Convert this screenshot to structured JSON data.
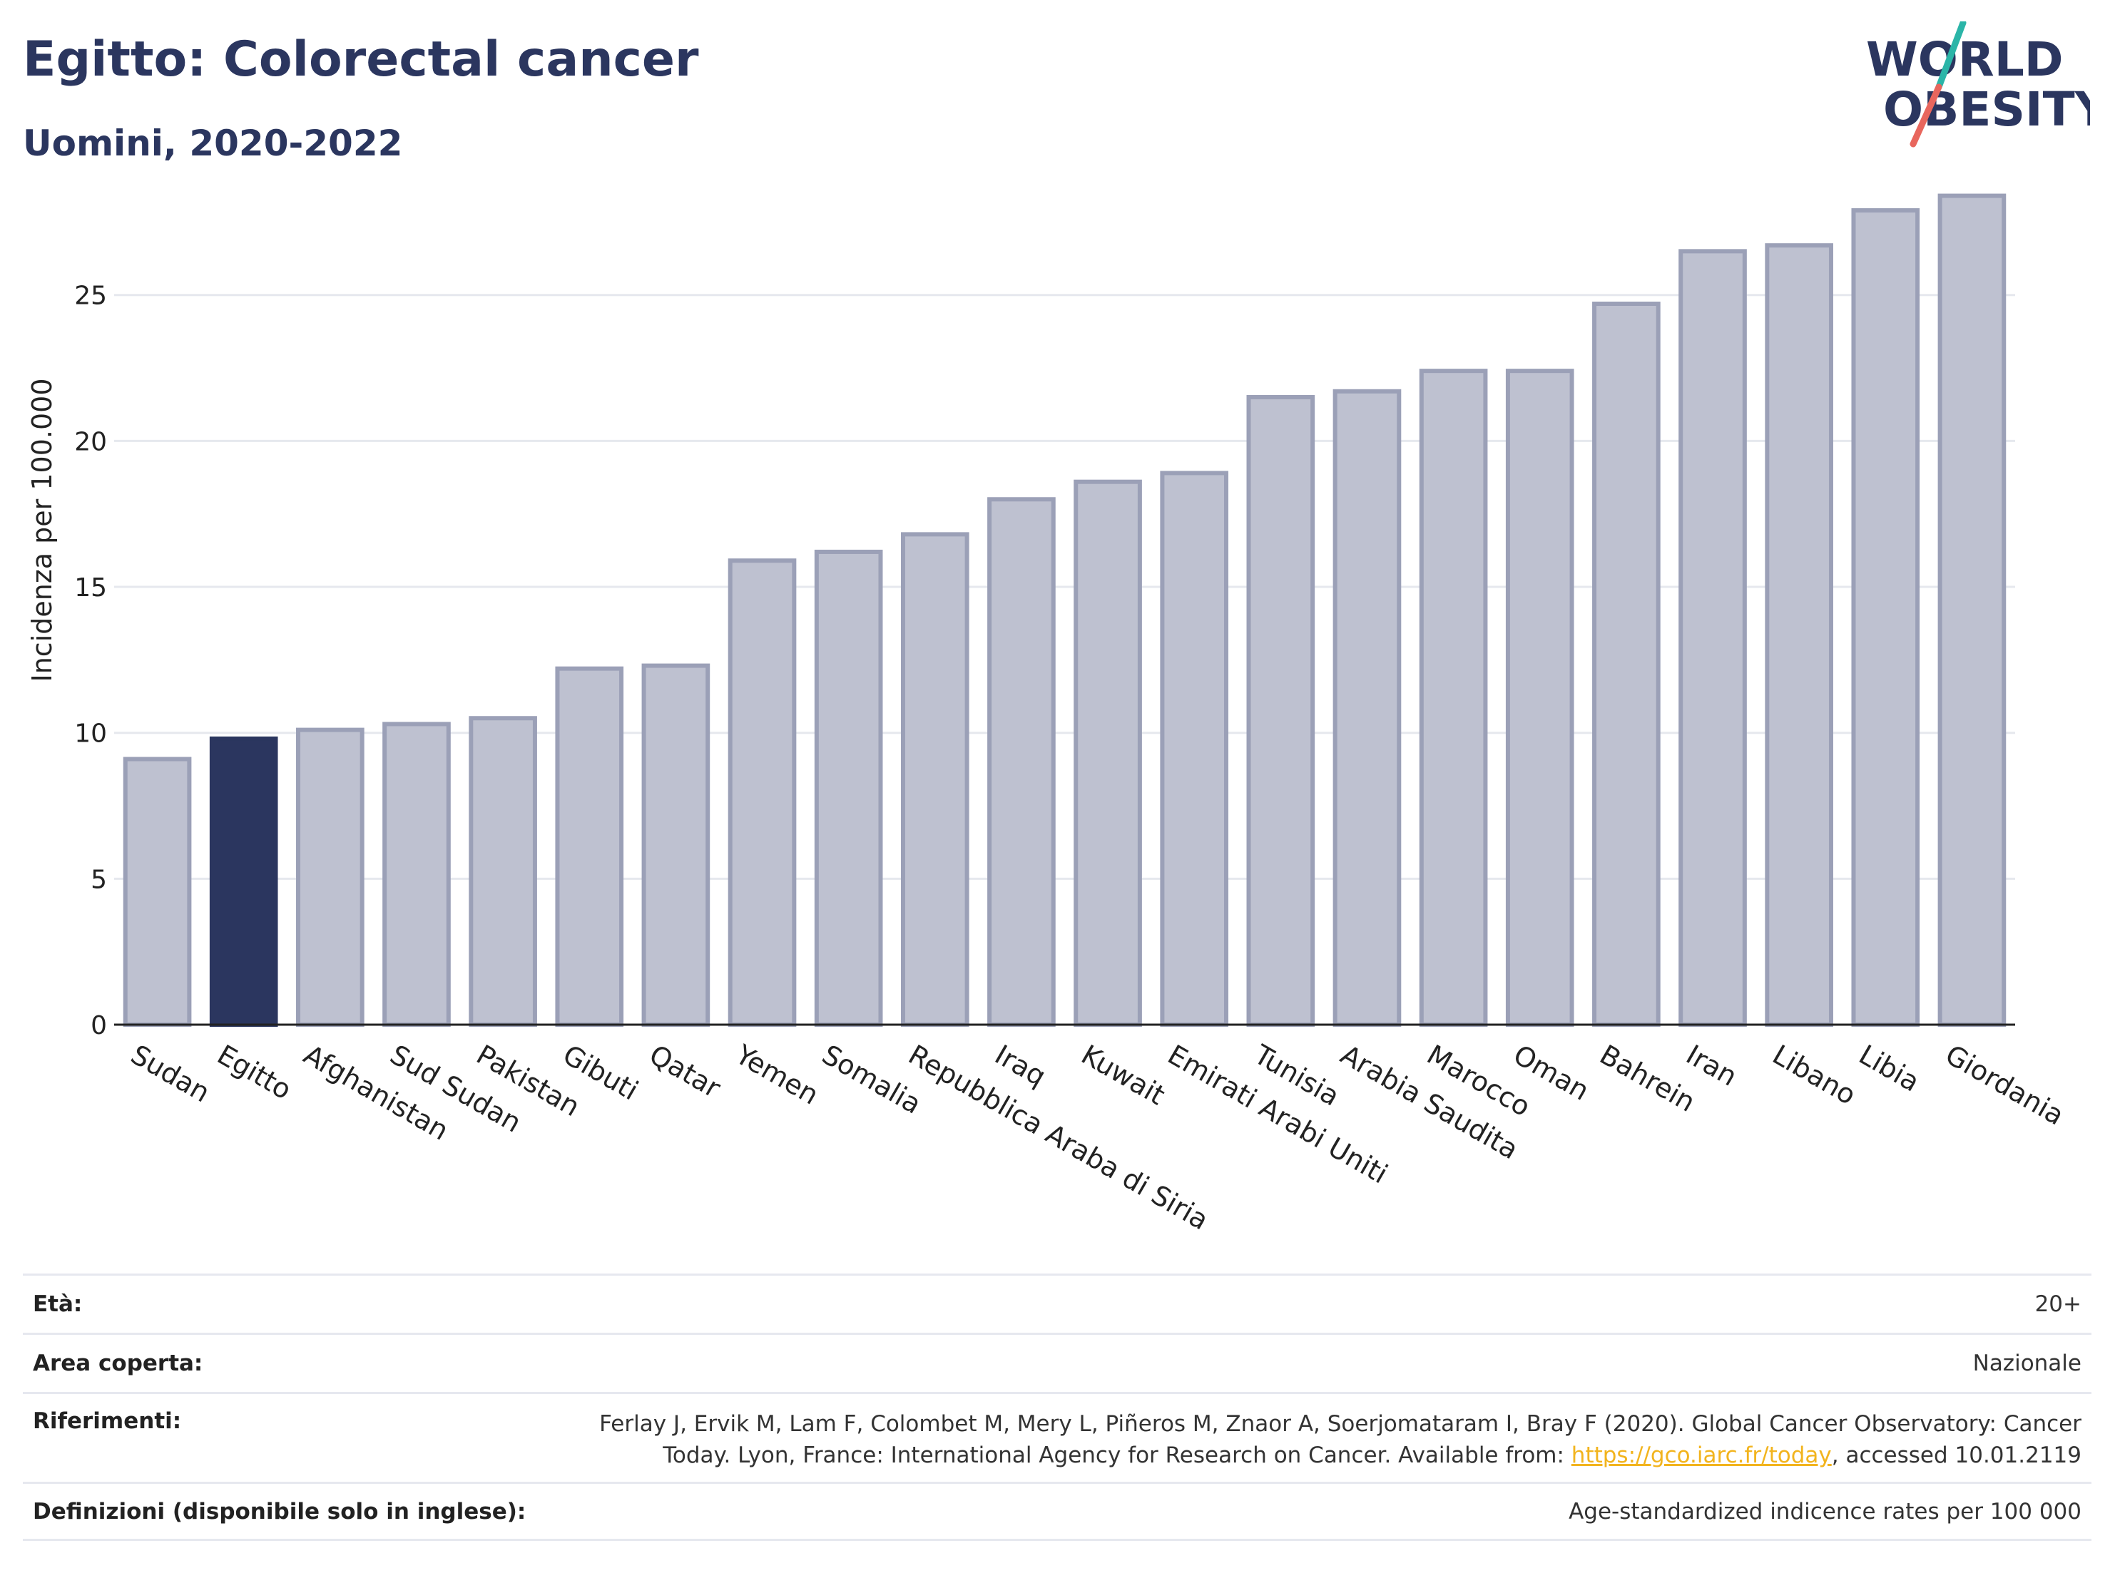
{
  "header": {
    "title": "Egitto: Colorectal cancer",
    "subtitle": "Uomini, 2020-2022"
  },
  "logo": {
    "line1": "WORLD",
    "line2": "OBESITY",
    "accent_teal": "#2bb5a8",
    "accent_red": "#e8665d"
  },
  "colors": {
    "highlight": "#2b365f",
    "bar": "#bec1d0",
    "bar_outline": "#9ba0b7"
  },
  "chart_data": {
    "type": "bar",
    "ylabel": "Incidenza per 100.000",
    "ylim": [
      0,
      29
    ],
    "yticks": [
      0,
      5,
      10,
      15,
      20,
      25
    ],
    "grid": true,
    "highlight": "Egitto",
    "categories": [
      "Sudan",
      "Egitto",
      "Afghanistan",
      "Sud Sudan",
      "Pakistan",
      "Gibuti",
      "Qatar",
      "Yemen",
      "Somalia",
      "Repubblica Araba di Siria",
      "Iraq",
      "Kuwait",
      "Emirati Arabi Uniti",
      "Tunisia",
      "Arabia Saudita",
      "Marocco",
      "Oman",
      "Bahrein",
      "Iran",
      "Libano",
      "Libia",
      "Giordania"
    ],
    "values": [
      9.1,
      9.8,
      10.1,
      10.3,
      10.5,
      12.2,
      12.3,
      15.9,
      16.2,
      16.8,
      18.0,
      18.6,
      18.9,
      21.5,
      21.7,
      22.4,
      22.4,
      24.7,
      26.5,
      26.7,
      27.9,
      28.4
    ]
  },
  "meta": {
    "age_label": "Età:",
    "age_value": "20+",
    "area_label": "Area coperta:",
    "area_value": "Nazionale",
    "ref_label": "Riferimenti:",
    "ref_line1": "Ferlay J, Ervik M, Lam F, Colombet M, Mery L, Piñeros M, Znaor A, Soerjomataram I, Bray F (2020). Global Cancer Observatory: Cancer",
    "ref_line2_pre": "Today. Lyon, France: International Agency for Research on Cancer. Available from: ",
    "ref_link": "https://gco.iarc.fr/today",
    "ref_line2_post": ", accessed 10.01.2119",
    "def_label": "Definizioni (disponibile solo in inglese):",
    "def_value": "Age-standardized indicence rates per 100 000"
  }
}
